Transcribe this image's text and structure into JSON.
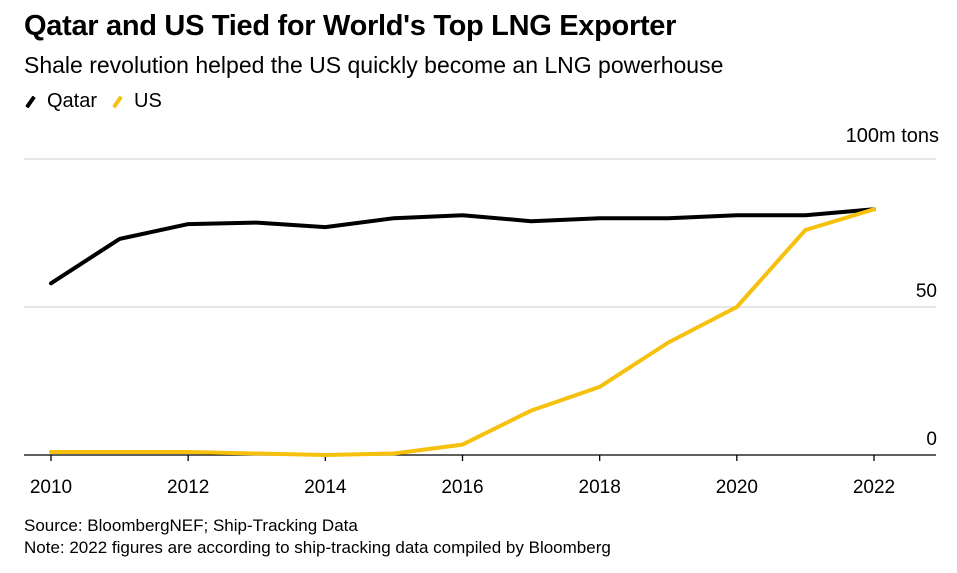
{
  "header": {
    "title": "Qatar and US Tied for World's Top LNG Exporter",
    "subtitle": "Shale revolution helped the US quickly become an LNG powerhouse"
  },
  "footer": {
    "source": "Source: BloombergNEF; Ship-Tracking Data",
    "note": "Note: 2022 figures are according to ship-tracking data compiled by Bloomberg"
  },
  "chart_data": {
    "type": "line",
    "title": "Qatar and US Tied for World's Top LNG Exporter",
    "subtitle": "Shale revolution helped the US quickly become an LNG powerhouse",
    "unit_label": "100m tons",
    "x": [
      2010,
      2011,
      2012,
      2013,
      2014,
      2015,
      2016,
      2017,
      2018,
      2019,
      2020,
      2021,
      2022
    ],
    "x_ticks": [
      "2010",
      "2012",
      "2014",
      "2016",
      "2018",
      "2020",
      "2022"
    ],
    "y_ticks": [
      {
        "value": 0,
        "label": "0"
      },
      {
        "value": 50,
        "label": "50"
      },
      {
        "value": 100,
        "label": ""
      }
    ],
    "ylim": [
      0,
      100
    ],
    "xlim": [
      2010,
      2022
    ],
    "grid": true,
    "legend_position": "top-left",
    "series": [
      {
        "name": "Qatar",
        "color": "#000000",
        "values": [
          58,
          73,
          78,
          78.5,
          77,
          80,
          81,
          79,
          80,
          80,
          81,
          81,
          83
        ]
      },
      {
        "name": "US",
        "color": "#f5c10d",
        "values": [
          1,
          1,
          1,
          0.5,
          0,
          0.5,
          3.5,
          15,
          23,
          38,
          50,
          76,
          83
        ]
      }
    ]
  }
}
